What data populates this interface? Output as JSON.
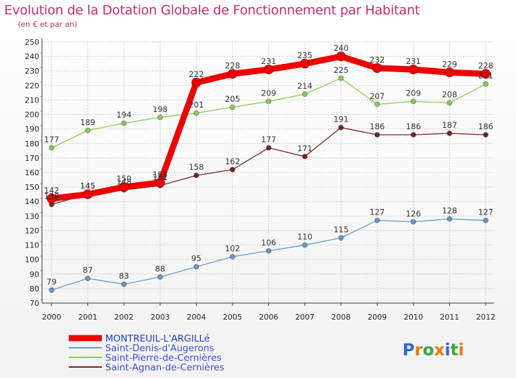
{
  "header": {
    "title": "Evolution de la Dotation Globale de Fonctionnement par Habitant",
    "subtitle": "(en € et par an)"
  },
  "brand": {
    "name": "Proxiti"
  },
  "chart_data": {
    "type": "line",
    "title": "Evolution de la Dotation Globale de Fonctionnement par Habitant",
    "subtitle": "(en € et par an)",
    "xlabel": "",
    "ylabel": "",
    "ylim": [
      70,
      250
    ],
    "ytick_step": 10,
    "grid": true,
    "legend_position": "bottom-left",
    "categories": [
      "2000",
      "2001",
      "2002",
      "2003",
      "2004",
      "2005",
      "2006",
      "2007",
      "2008",
      "2009",
      "2010",
      "2011",
      "2012"
    ],
    "series": [
      {
        "name": "MONTREUIL-L'ARGILLé",
        "color": "#ee0000",
        "values": [
          142,
          145,
          150,
          153,
          222,
          228,
          231,
          235,
          240,
          232,
          231,
          229,
          228
        ]
      },
      {
        "name": "Saint-Denis-d'Augerons",
        "color": "#6699cc",
        "values": [
          79,
          87,
          83,
          88,
          95,
          102,
          106,
          110,
          115,
          127,
          126,
          128,
          127
        ]
      },
      {
        "name": "Saint-Pierre-de-Cernières",
        "color": "#88cc55",
        "values": [
          177,
          189,
          194,
          198,
          201,
          205,
          209,
          214,
          225,
          207,
          209,
          208,
          221
        ]
      },
      {
        "name": "Saint-Agnan-de-Cernières",
        "color": "#772222",
        "values": [
          138,
          145,
          148,
          151,
          158,
          162,
          177,
          171,
          191,
          186,
          186,
          187,
          186
        ]
      }
    ]
  }
}
